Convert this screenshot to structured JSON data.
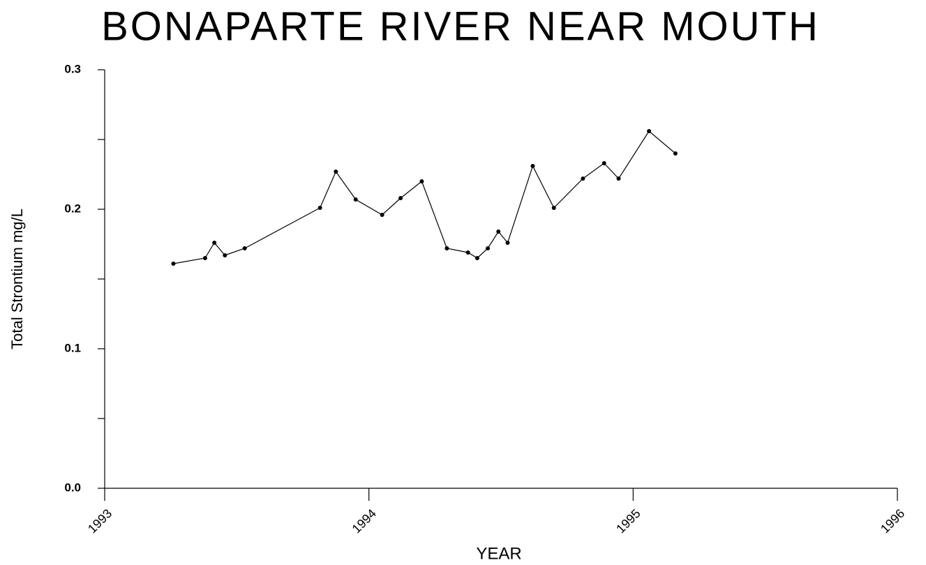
{
  "chart_data": {
    "type": "line",
    "title": "BONAPARTE RIVER NEAR MOUTH",
    "xlabel": "YEAR",
    "ylabel": "Total Strontium mg/L",
    "x": [
      1993.26,
      1993.38,
      1993.415,
      1993.455,
      1993.53,
      1993.815,
      1993.875,
      1993.95,
      1994.05,
      1994.12,
      1994.2,
      1994.295,
      1994.375,
      1994.41,
      1994.45,
      1994.49,
      1994.525,
      1994.62,
      1994.7,
      1994.81,
      1994.89,
      1994.945,
      1995.06,
      1995.16
    ],
    "series": [
      {
        "color": "#000000",
        "values": [
          0.161,
          0.165,
          0.176,
          0.167,
          0.172,
          0.201,
          0.227,
          0.207,
          0.196,
          0.208,
          0.22,
          0.172,
          0.169,
          0.165,
          0.172,
          0.184,
          0.176,
          0.231,
          0.201,
          0.222,
          0.233,
          0.222,
          0.256,
          0.24
        ]
      }
    ],
    "xlim": [
      1993,
      1996
    ],
    "xticks": [
      1993,
      1994,
      1995,
      1996
    ],
    "ylim": [
      0,
      0.3
    ],
    "yticks": [
      {
        "value": 0,
        "label": "0.0"
      },
      0.1,
      0.2,
      0.3
    ],
    "yminorticks": [
      0.05,
      0.15,
      0.25
    ],
    "markers": true,
    "grid": false
  }
}
